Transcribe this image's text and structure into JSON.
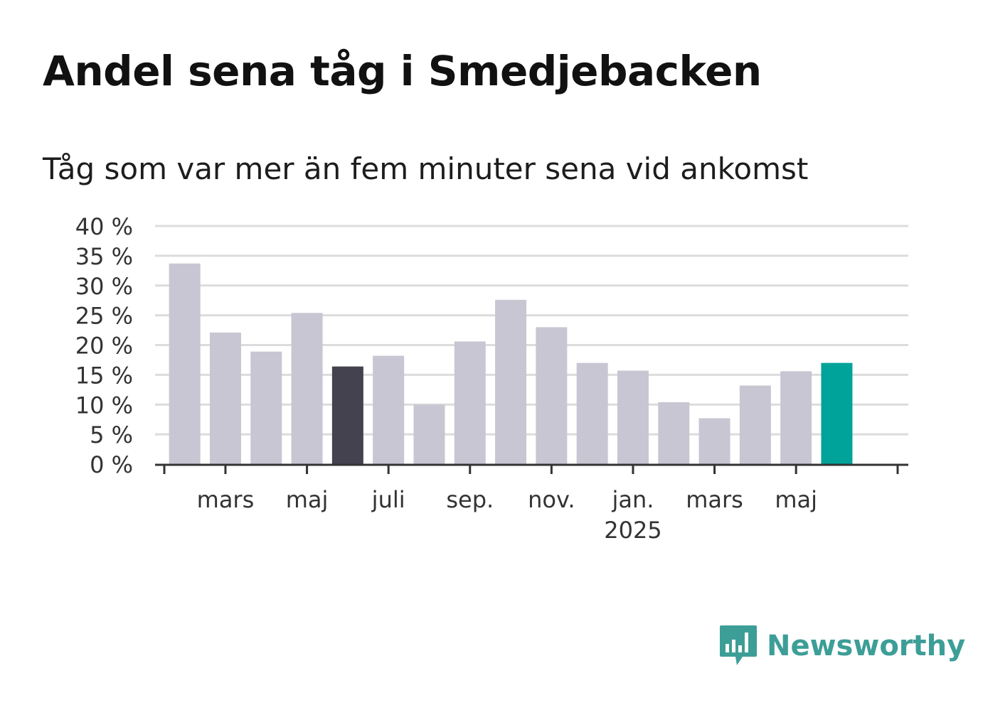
{
  "header": {
    "title": "Andel sena tåg i Smedjebacken",
    "subtitle": "Tåg som var mer än fem minuter sena vid ankomst"
  },
  "colors": {
    "bar_default": "#c8c6d2",
    "bar_highlight_dark": "#43424e",
    "bar_highlight_accent": "#00a39a",
    "grid": "#dcdcdc",
    "axis": "#333333",
    "brand": "#3d9e97"
  },
  "chart_data": {
    "type": "bar",
    "title": "Andel sena tåg i Smedjebacken",
    "subtitle": "Tåg som var mer än fem minuter sena vid ankomst",
    "xlabel": "",
    "ylabel": "",
    "ylim": [
      0,
      40
    ],
    "y_ticks": [
      0,
      5,
      10,
      15,
      20,
      25,
      30,
      35,
      40
    ],
    "y_tick_labels": [
      "0 %",
      "5 %",
      "10 %",
      "15 %",
      "20 %",
      "25 %",
      "30 %",
      "35 %",
      "40 %"
    ],
    "grid": true,
    "categories": [
      "2024-02",
      "2024-03",
      "2024-04",
      "2024-05",
      "2024-06",
      "2024-07",
      "2024-08",
      "2024-09",
      "2024-10",
      "2024-11",
      "2024-12",
      "2025-01",
      "2025-02",
      "2025-03",
      "2025-04",
      "2025-05",
      "2025-06"
    ],
    "values": [
      33.7,
      22.1,
      18.9,
      25.4,
      16.4,
      18.2,
      10.0,
      20.6,
      27.6,
      23.0,
      17.0,
      15.7,
      10.4,
      7.7,
      13.2,
      15.6,
      17.0
    ],
    "highlight": {
      "2024-06": "dark",
      "2025-06": "accent"
    },
    "x_tick_labels": [
      {
        "category": "2024-03",
        "label": "mars"
      },
      {
        "category": "2024-05",
        "label": "maj"
      },
      {
        "category": "2024-07",
        "label": "juli"
      },
      {
        "category": "2024-09",
        "label": "sep."
      },
      {
        "category": "2024-11",
        "label": "nov."
      },
      {
        "category": "2025-01",
        "label": "jan.",
        "sublabel": "2025"
      },
      {
        "category": "2025-03",
        "label": "mars"
      },
      {
        "category": "2025-05",
        "label": "maj"
      }
    ]
  },
  "logo": {
    "text": "Newsworthy",
    "icon": "bar-chart-speech-bubble-icon"
  }
}
